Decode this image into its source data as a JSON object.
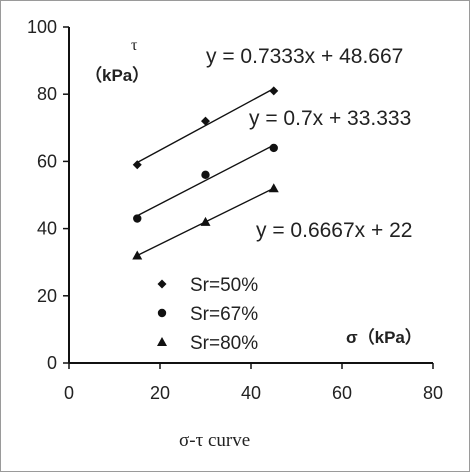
{
  "chart_data": {
    "type": "scatter",
    "xlim": [
      0,
      80
    ],
    "ylim": [
      0,
      100
    ],
    "x_ticks": [
      "0",
      "20",
      "40",
      "60",
      "80"
    ],
    "y_ticks": [
      "0",
      "20",
      "40",
      "60",
      "80",
      "100"
    ],
    "xlabel": "σ（kPa）",
    "ylabel_line1": "τ",
    "ylabel_line2": "（kPa）",
    "caption": "σ-τ curve",
    "grid": false,
    "legend_position": "bottom-left",
    "series": [
      {
        "name": "Sr=50%",
        "marker": "diamond",
        "x": [
          15,
          30,
          45
        ],
        "y": [
          59,
          72,
          81
        ],
        "fit": {
          "slope": 0.7333,
          "intercept": 48.667
        },
        "equation": "y = 0.7333x + 48.667"
      },
      {
        "name": "Sr=67%",
        "marker": "circle",
        "x": [
          15,
          30,
          45
        ],
        "y": [
          43,
          56,
          64
        ],
        "fit": {
          "slope": 0.7,
          "intercept": 33.333
        },
        "equation": "y = 0.7x + 33.333"
      },
      {
        "name": "Sr=80%",
        "marker": "triangle",
        "x": [
          15,
          30,
          45
        ],
        "y": [
          32,
          42,
          52
        ],
        "fit": {
          "slope": 0.6667,
          "intercept": 22
        },
        "equation": "y = 0.6667x + 22"
      }
    ]
  },
  "colors": {
    "axis": "#111111",
    "marker": "#111111",
    "text": "#222222"
  }
}
